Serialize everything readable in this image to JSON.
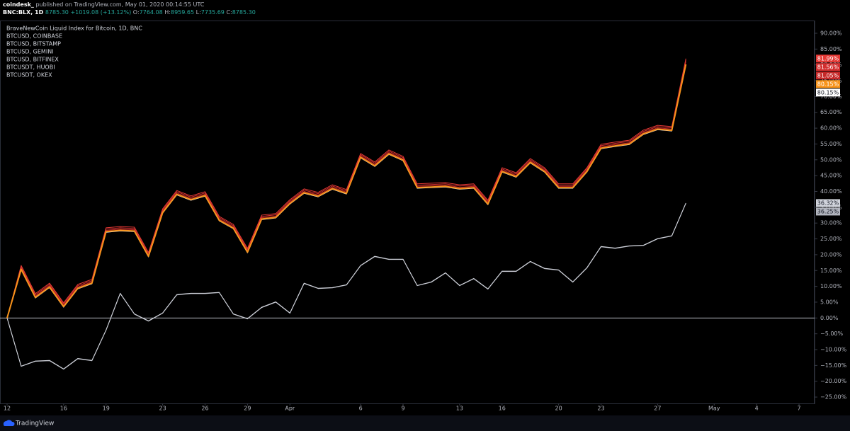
{
  "header": {
    "author": "coindesk_",
    "published": "published on TradingView.com, May 01, 2020 00:14:55 UTC",
    "symbol": "BNC:BLX, 1D",
    "last": "8785.30",
    "change": "+1019.08 (+13.12%)",
    "ohlc": [
      {
        "key": "O:",
        "value": "7764.08"
      },
      {
        "key": "H:",
        "value": "8959.65"
      },
      {
        "key": "L:",
        "value": "7735.69"
      },
      {
        "key": "C:",
        "value": "8785.30"
      }
    ]
  },
  "chart_data": {
    "type": "line",
    "x": [
      0,
      1,
      2,
      3,
      4,
      5,
      6,
      7,
      8,
      9,
      10,
      11,
      12,
      13,
      14,
      15,
      16,
      17,
      18,
      19,
      20,
      21,
      22,
      23,
      24,
      25,
      26,
      27,
      28,
      29,
      30,
      31,
      32,
      33,
      34,
      35,
      36,
      37,
      38,
      39,
      40,
      41,
      42,
      43,
      44,
      45,
      46,
      47,
      48
    ],
    "xlim": [
      -0.5,
      57.1
    ],
    "xticks": [
      {
        "value": 0,
        "label": "12"
      },
      {
        "value": 4,
        "label": "16"
      },
      {
        "value": 7,
        "label": "19"
      },
      {
        "value": 11,
        "label": "23"
      },
      {
        "value": 14,
        "label": "26"
      },
      {
        "value": 17,
        "label": "29"
      },
      {
        "value": 20,
        "label": "Apr"
      },
      {
        "value": 25,
        "label": "6"
      },
      {
        "value": 28,
        "label": "9"
      },
      {
        "value": 32,
        "label": "13"
      },
      {
        "value": 35,
        "label": "16"
      },
      {
        "value": 39,
        "label": "20"
      },
      {
        "value": 42,
        "label": "23"
      },
      {
        "value": 46,
        "label": "27"
      },
      {
        "value": 50,
        "label": "May"
      },
      {
        "value": 53,
        "label": "4"
      },
      {
        "value": 56,
        "label": "7"
      }
    ],
    "ylim": [
      -27,
      93.8
    ],
    "yticks": [
      {
        "value": 90,
        "label": "90.00%"
      },
      {
        "value": 85,
        "label": "85.00%"
      },
      {
        "value": 80,
        "label": "80.00%"
      },
      {
        "value": 75,
        "label": "75.00%"
      },
      {
        "value": 70,
        "label": "70.00%"
      },
      {
        "value": 65,
        "label": "65.00%"
      },
      {
        "value": 60,
        "label": "60.00%"
      },
      {
        "value": 55,
        "label": "55.00%"
      },
      {
        "value": 50,
        "label": "50.00%"
      },
      {
        "value": 45,
        "label": "45.00%"
      },
      {
        "value": 40,
        "label": "40.00%"
      },
      {
        "value": 35,
        "label": "35.00%"
      },
      {
        "value": 30,
        "label": "30.00%"
      },
      {
        "value": 25,
        "label": "25.00%"
      },
      {
        "value": 20,
        "label": "20.00%"
      },
      {
        "value": 15,
        "label": "15.00%"
      },
      {
        "value": 10,
        "label": "10.00%"
      },
      {
        "value": 5,
        "label": "5.00%"
      },
      {
        "value": 0,
        "label": "0.00%"
      },
      {
        "value": -5,
        "label": "−5.00%"
      },
      {
        "value": -10,
        "label": "−10.00%"
      },
      {
        "value": -15,
        "label": "−15.00%"
      },
      {
        "value": -20,
        "label": "−20.00%"
      },
      {
        "value": -25,
        "label": "−25.00%"
      }
    ],
    "series": [
      {
        "name": "BraveNewCoin Liquid Index for Bitcoin, 1D, BNC",
        "color": "#f7931a",
        "last_label": "80.15%",
        "values": [
          0,
          15.4,
          6.5,
          9.8,
          3.6,
          9.4,
          11.0,
          27.3,
          27.7,
          27.5,
          19.5,
          33.3,
          39.1,
          37.4,
          38.7,
          30.9,
          28.4,
          20.8,
          31.3,
          31.8,
          36.2,
          39.6,
          38.5,
          40.9,
          39.4,
          50.8,
          48.1,
          51.9,
          49.9,
          41.2,
          41.4,
          41.6,
          40.9,
          41.2,
          36.0,
          46.3,
          44.7,
          49.2,
          46.3,
          41.2,
          41.2,
          46.3,
          53.7,
          54.4,
          55.0,
          58.2,
          59.7,
          59.3,
          80.15
        ]
      },
      {
        "name": "BTCUSD, COINBASE",
        "color": "#e53935",
        "last_label": "81.99%",
        "values": [
          0,
          16.6,
          7.7,
          11.0,
          4.8,
          10.6,
          12.2,
          28.5,
          28.9,
          28.7,
          20.7,
          34.5,
          40.3,
          38.6,
          39.9,
          32.1,
          29.6,
          22.0,
          32.5,
          33.0,
          37.4,
          40.8,
          39.7,
          42.1,
          40.6,
          52.0,
          49.3,
          53.1,
          51.1,
          42.4,
          42.6,
          42.8,
          42.1,
          42.4,
          37.2,
          47.5,
          45.9,
          50.4,
          47.5,
          42.4,
          42.4,
          47.5,
          54.9,
          55.6,
          56.2,
          59.4,
          60.9,
          60.5,
          81.99
        ]
      },
      {
        "name": "BTCUSD, BITSTAMP",
        "color": "#d32f2f",
        "last_label": "81.56%",
        "values": [
          0,
          16.2,
          7.3,
          10.6,
          4.4,
          10.2,
          11.8,
          28.1,
          28.5,
          28.3,
          20.3,
          34.1,
          39.9,
          38.2,
          39.5,
          31.7,
          29.2,
          21.6,
          32.1,
          32.6,
          37.0,
          40.4,
          39.3,
          41.7,
          40.2,
          51.6,
          48.9,
          52.7,
          50.7,
          42.0,
          42.2,
          42.4,
          41.7,
          42.0,
          36.8,
          47.1,
          45.5,
          50.0,
          47.1,
          42.0,
          42.0,
          47.1,
          54.5,
          55.2,
          55.8,
          59.0,
          60.5,
          60.1,
          81.56
        ]
      },
      {
        "name": "BTCUSD, GEMINI",
        "color": "#c62828",
        "last_label": "81.05%",
        "values": [
          0,
          15.8,
          6.9,
          10.2,
          4.0,
          9.8,
          11.4,
          27.7,
          28.1,
          27.9,
          19.9,
          33.7,
          39.5,
          37.8,
          39.1,
          31.3,
          28.8,
          21.2,
          31.7,
          32.2,
          36.6,
          40.0,
          38.9,
          41.3,
          39.8,
          51.2,
          48.5,
          52.3,
          50.3,
          41.6,
          41.8,
          42.0,
          41.3,
          41.6,
          36.4,
          46.7,
          45.1,
          49.6,
          46.7,
          41.6,
          41.6,
          46.7,
          54.1,
          54.8,
          55.4,
          58.6,
          60.1,
          59.7,
          81.05
        ]
      },
      {
        "name": "BTCUSD, BITFINEX",
        "color": "#ffffff",
        "last_label": "80.15%",
        "values": [
          0,
          15.2,
          6.3,
          9.6,
          3.4,
          9.2,
          10.8,
          27.1,
          27.5,
          27.3,
          19.3,
          33.1,
          38.9,
          37.2,
          38.5,
          30.7,
          28.2,
          20.6,
          31.1,
          31.6,
          36.0,
          39.4,
          38.3,
          40.7,
          39.2,
          50.6,
          47.9,
          51.7,
          49.7,
          41.0,
          41.2,
          41.4,
          40.7,
          41.0,
          35.8,
          46.1,
          44.5,
          49.0,
          46.1,
          41.0,
          41.0,
          46.1,
          53.5,
          54.2,
          54.8,
          58.0,
          59.5,
          59.1,
          80.15
        ]
      },
      {
        "name": "BTCUSDT, HUOBI",
        "color": "#d1d4dc",
        "last_label": "36.32%",
        "values": [
          0,
          -15.2,
          -13.6,
          -13.4,
          -16.1,
          -12.8,
          -13.4,
          -3.8,
          7.8,
          1.3,
          -0.9,
          1.6,
          7.4,
          7.8,
          7.8,
          8.1,
          1.3,
          -0.2,
          3.4,
          5.1,
          1.6,
          11.0,
          9.4,
          9.6,
          10.5,
          16.6,
          19.5,
          18.6,
          18.6,
          10.3,
          11.4,
          14.3,
          10.3,
          12.5,
          9.2,
          14.8,
          14.8,
          17.9,
          15.7,
          15.2,
          11.4,
          15.9,
          22.6,
          22.1,
          22.8,
          23.0,
          25.1,
          26.0,
          36.32
        ]
      },
      {
        "name": "BTCUSDT, OKEX",
        "color": "#b2b5be",
        "last_label": "36.25%",
        "values": [
          0,
          -15.3,
          -13.7,
          -13.5,
          -16.2,
          -12.9,
          -13.5,
          -3.9,
          7.7,
          1.2,
          -1.0,
          1.5,
          7.3,
          7.7,
          7.7,
          8.0,
          1.2,
          -0.3,
          3.3,
          5.0,
          1.5,
          10.9,
          9.3,
          9.5,
          10.4,
          16.5,
          19.4,
          18.5,
          18.5,
          10.2,
          11.3,
          14.2,
          10.2,
          12.4,
          9.1,
          14.7,
          14.7,
          17.8,
          15.6,
          15.1,
          11.3,
          15.8,
          22.5,
          22.0,
          22.7,
          22.9,
          25.0,
          25.9,
          36.25
        ]
      }
    ]
  },
  "footer": {
    "brand": "TradingView"
  }
}
